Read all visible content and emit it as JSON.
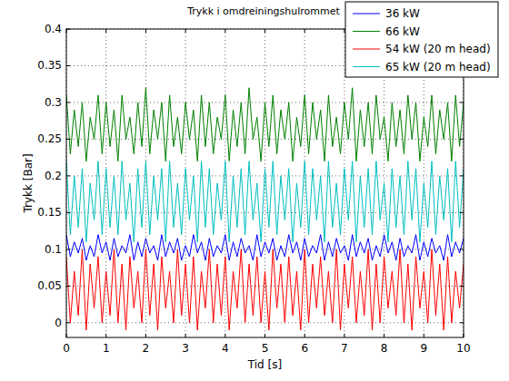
{
  "chart_data": {
    "type": "line",
    "title": "Trykk i omdreiningshulrommet",
    "x_label": "Tid [s]",
    "y_label": "Trykk [Bar]",
    "xlim": [
      0,
      10
    ],
    "xticks": [
      0,
      1,
      2,
      3,
      4,
      5,
      6,
      7,
      8,
      9,
      10
    ],
    "ylim": [
      -0.02,
      0.4
    ],
    "yticks": [
      0,
      0.05,
      0.1,
      0.15,
      0.2,
      0.25,
      0.3,
      0.35,
      0.4
    ],
    "grid": true,
    "legend": "northeast",
    "x": [
      0,
      0.1,
      0.2,
      0.3,
      0.4,
      0.5,
      0.6,
      0.7,
      0.8,
      0.9,
      1,
      1.1,
      1.2,
      1.3,
      1.4,
      1.5,
      1.6,
      1.7,
      1.8,
      1.9,
      2,
      2.1,
      2.2,
      2.3,
      2.4,
      2.5,
      2.6,
      2.7,
      2.8,
      2.9,
      3,
      3.1,
      3.2,
      3.3,
      3.4,
      3.5,
      3.6,
      3.7,
      3.8,
      3.9,
      4,
      4.1,
      4.2,
      4.3,
      4.4,
      4.5,
      4.6,
      4.7,
      4.8,
      4.9,
      5,
      5.1,
      5.2,
      5.3,
      5.4,
      5.5,
      5.6,
      5.7,
      5.8,
      5.9,
      6,
      6.1,
      6.2,
      6.3,
      6.4,
      6.5,
      6.6,
      6.7,
      6.8,
      6.9,
      7,
      7.1,
      7.2,
      7.3,
      7.4,
      7.5,
      7.6,
      7.7,
      7.8,
      7.9,
      8,
      8.1,
      8.2,
      8.3,
      8.4,
      8.5,
      8.6,
      8.7,
      8.8,
      8.9,
      9,
      9.1,
      9.2,
      9.3,
      9.4,
      9.5,
      9.6,
      9.7,
      9.8,
      9.9,
      10
    ],
    "series": [
      {
        "name": "36 kW",
        "color": "#0000ff",
        "values": [
          0.12,
          0.09,
          0.11,
          0.095,
          0.115,
          0.085,
          0.105,
          0.09,
          0.12,
          0.095,
          0.11,
          0.085,
          0.115,
          0.09,
          0.105,
          0.095,
          0.12,
          0.085,
          0.11,
          0.09,
          0.115,
          0.095,
          0.105,
          0.085,
          0.12,
          0.09,
          0.11,
          0.095,
          0.115,
          0.085,
          0.105,
          0.09,
          0.12,
          0.095,
          0.11,
          0.085,
          0.115,
          0.09,
          0.105,
          0.095,
          0.12,
          0.085,
          0.11,
          0.09,
          0.115,
          0.095,
          0.105,
          0.085,
          0.12,
          0.09,
          0.11,
          0.095,
          0.115,
          0.085,
          0.105,
          0.09,
          0.12,
          0.095,
          0.11,
          0.085,
          0.115,
          0.09,
          0.105,
          0.095,
          0.12,
          0.085,
          0.11,
          0.09,
          0.115,
          0.095,
          0.105,
          0.085,
          0.12,
          0.09,
          0.11,
          0.095,
          0.115,
          0.085,
          0.105,
          0.09,
          0.12,
          0.095,
          0.11,
          0.085,
          0.115,
          0.09,
          0.105,
          0.095,
          0.12,
          0.085,
          0.11,
          0.09,
          0.115,
          0.095,
          0.105,
          0.085,
          0.12,
          0.09,
          0.11,
          0.095,
          0.115
        ]
      },
      {
        "name": "66 kW",
        "color": "#008000",
        "values": [
          0.31,
          0.23,
          0.29,
          0.24,
          0.3,
          0.22,
          0.28,
          0.25,
          0.31,
          0.23,
          0.3,
          0.24,
          0.29,
          0.22,
          0.31,
          0.25,
          0.28,
          0.23,
          0.3,
          0.24,
          0.32,
          0.23,
          0.29,
          0.25,
          0.3,
          0.22,
          0.31,
          0.24,
          0.28,
          0.23,
          0.3,
          0.25,
          0.29,
          0.22,
          0.31,
          0.24,
          0.3,
          0.23,
          0.28,
          0.25,
          0.31,
          0.22,
          0.29,
          0.24,
          0.3,
          0.23,
          0.32,
          0.25,
          0.28,
          0.22,
          0.3,
          0.24,
          0.31,
          0.23,
          0.29,
          0.25,
          0.3,
          0.22,
          0.28,
          0.24,
          0.31,
          0.23,
          0.3,
          0.25,
          0.29,
          0.22,
          0.31,
          0.24,
          0.28,
          0.23,
          0.3,
          0.25,
          0.32,
          0.22,
          0.29,
          0.24,
          0.3,
          0.23,
          0.31,
          0.25,
          0.28,
          0.22,
          0.3,
          0.24,
          0.29,
          0.23,
          0.31,
          0.25,
          0.3,
          0.22,
          0.28,
          0.24,
          0.31,
          0.23,
          0.29,
          0.25,
          0.3,
          0.22,
          0.31,
          0.24,
          0.3
        ]
      },
      {
        "name": "54 kW (20 m head)",
        "color": "#ff0000",
        "values": [
          0.09,
          0.0,
          0.07,
          0.01,
          0.1,
          -0.01,
          0.08,
          0.02,
          0.09,
          0.0,
          0.07,
          0.01,
          0.1,
          0.0,
          0.08,
          -0.01,
          0.09,
          0.02,
          0.07,
          0.0,
          0.1,
          0.01,
          0.08,
          -0.01,
          0.09,
          0.02,
          0.07,
          0.0,
          0.1,
          0.01,
          0.08,
          0.0,
          0.09,
          -0.01,
          0.07,
          0.02,
          0.1,
          0.0,
          0.08,
          0.01,
          0.09,
          -0.01,
          0.07,
          0.02,
          0.1,
          0.0,
          0.08,
          0.01,
          0.09,
          0.0,
          0.07,
          -0.01,
          0.1,
          0.02,
          0.08,
          0.0,
          0.09,
          0.01,
          0.07,
          -0.01,
          0.1,
          0.0,
          0.08,
          0.02,
          0.09,
          0.01,
          0.07,
          0.0,
          0.1,
          -0.01,
          0.08,
          0.02,
          0.09,
          0.0,
          0.07,
          0.01,
          0.1,
          -0.01,
          0.08,
          0.0,
          0.09,
          0.02,
          0.07,
          0.01,
          0.1,
          0.0,
          0.08,
          -0.01,
          0.09,
          0.02,
          0.07,
          0.0,
          0.1,
          0.01,
          0.08,
          -0.01,
          0.09,
          0.0,
          0.07,
          0.02,
          0.08
        ]
      },
      {
        "name": "65 kW (20 m head)",
        "color": "#00bfbf",
        "values": [
          0.22,
          0.12,
          0.2,
          0.13,
          0.21,
          0.11,
          0.19,
          0.14,
          0.22,
          0.12,
          0.21,
          0.13,
          0.2,
          0.12,
          0.22,
          0.14,
          0.19,
          0.11,
          0.21,
          0.13,
          0.22,
          0.12,
          0.2,
          0.14,
          0.21,
          0.11,
          0.22,
          0.13,
          0.19,
          0.12,
          0.21,
          0.14,
          0.2,
          0.11,
          0.22,
          0.13,
          0.21,
          0.12,
          0.19,
          0.14,
          0.22,
          0.11,
          0.2,
          0.13,
          0.21,
          0.12,
          0.22,
          0.14,
          0.19,
          0.11,
          0.21,
          0.13,
          0.22,
          0.12,
          0.2,
          0.14,
          0.21,
          0.11,
          0.19,
          0.13,
          0.22,
          0.12,
          0.21,
          0.14,
          0.2,
          0.11,
          0.22,
          0.13,
          0.19,
          0.12,
          0.21,
          0.14,
          0.22,
          0.11,
          0.2,
          0.13,
          0.21,
          0.12,
          0.22,
          0.14,
          0.19,
          0.11,
          0.21,
          0.13,
          0.2,
          0.12,
          0.22,
          0.14,
          0.21,
          0.11,
          0.19,
          0.13,
          0.22,
          0.12,
          0.2,
          0.14,
          0.21,
          0.11,
          0.22,
          0.13,
          0.21
        ]
      }
    ]
  }
}
